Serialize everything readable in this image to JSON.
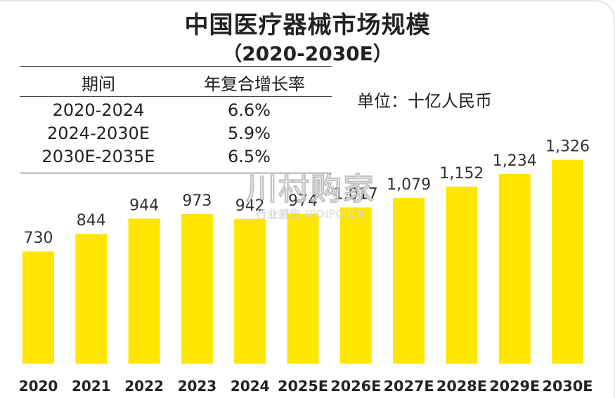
{
  "chart_data": {
    "type": "bar",
    "title": "中国医疗器械市场规模",
    "subtitle": "（2020-2030E）",
    "unit": "单位：十亿人民币",
    "categories": [
      "2020",
      "2021",
      "2022",
      "2023",
      "2024",
      "2025E",
      "2026E",
      "2027E",
      "2028E",
      "2029E",
      "2030E"
    ],
    "values": [
      730,
      844,
      944,
      973,
      942,
      974,
      1017,
      1079,
      1152,
      1234,
      1326
    ],
    "value_labels": [
      "730",
      "844",
      "944",
      "973",
      "942",
      "974",
      "1,017",
      "1,079",
      "1,152",
      "1,234",
      "1,326"
    ],
    "bar_color": "#ffe600",
    "ylim": [
      0,
      1400
    ],
    "grid": false
  },
  "cagr_table": {
    "headers": [
      "期间",
      "年复合增长率"
    ],
    "rows": [
      {
        "period": "2020-2024",
        "rate": "6.6%"
      },
      {
        "period": "2024-2030E",
        "rate": "5.9%"
      },
      {
        "period": "2030E-2035E",
        "rate": "6.5%"
      }
    ]
  },
  "watermark": {
    "main": "川村购家",
    "sub": "行业报告 IPOIPO.CN"
  }
}
